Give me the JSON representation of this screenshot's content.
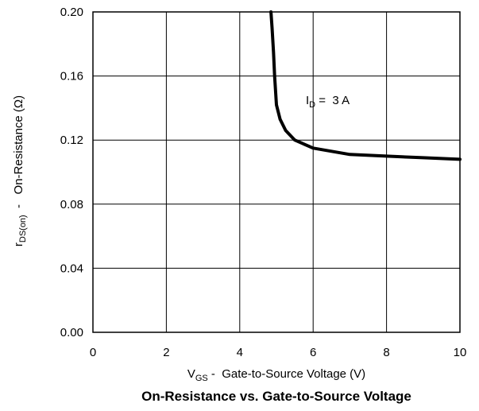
{
  "chart_data": {
    "type": "line",
    "title": "On-Resistance vs. Gate-to-Source Voltage",
    "xlabel": {
      "symbol": "V",
      "sub": "GS",
      "text": " -  Gate-to-Source Voltage (V)"
    },
    "ylabel": {
      "symbol": "r",
      "sub": "DS(on)",
      "text": "  -   On-Resistance (Ω)"
    },
    "xlim": [
      0,
      10
    ],
    "ylim": [
      0,
      0.2
    ],
    "x_ticks": [
      "0",
      "2",
      "4",
      "6",
      "8",
      "10"
    ],
    "y_ticks": [
      "0.00",
      "0.04",
      "0.08",
      "0.12",
      "0.16",
      "0.20"
    ],
    "grid": true,
    "annotation": {
      "symbol": "I",
      "sub": "D",
      "text": " =  3 A"
    },
    "series": [
      {
        "x": [
          4.85,
          4.88,
          4.92,
          4.95,
          5.0,
          5.1,
          5.25,
          5.5,
          6.0,
          6.5,
          7.0,
          8.0,
          9.0,
          10.0
        ],
        "y": [
          0.2,
          0.19,
          0.175,
          0.16,
          0.142,
          0.133,
          0.126,
          0.12,
          0.115,
          0.113,
          0.111,
          0.11,
          0.109,
          0.108
        ]
      }
    ]
  }
}
